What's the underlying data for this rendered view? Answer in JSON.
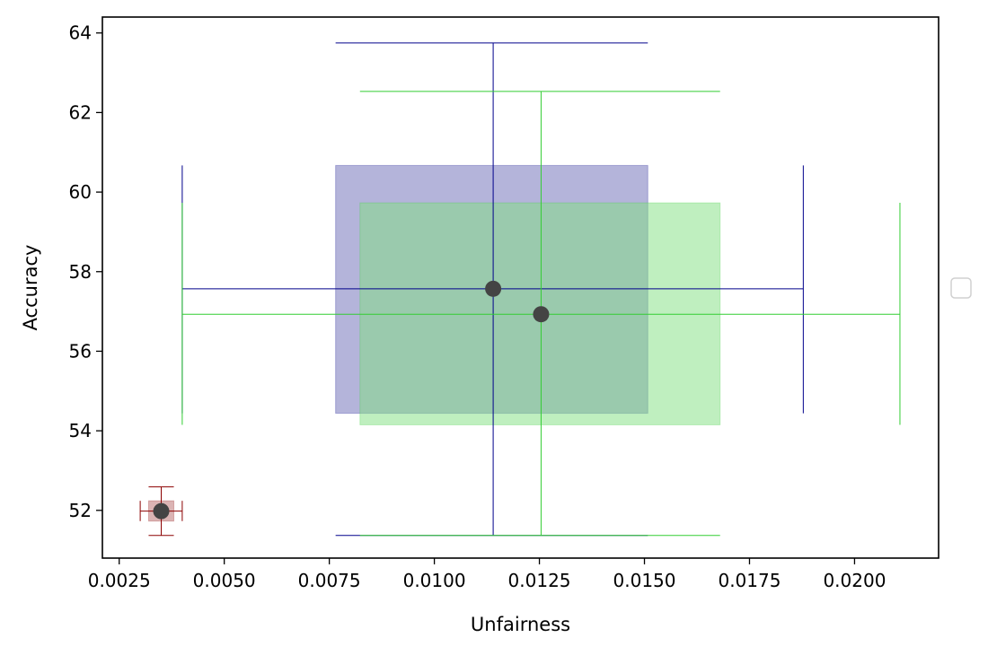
{
  "chart_data": {
    "type": "scatter",
    "title": "",
    "xlabel": "Unfairness",
    "ylabel": "Accuracy",
    "xlim": [
      0.0021,
      0.022
    ],
    "ylim": [
      50.8,
      64.4
    ],
    "xticks": [
      0.0025,
      0.005,
      0.0075,
      0.01,
      0.0125,
      0.015,
      0.0175,
      0.02
    ],
    "xtick_labels": [
      "0.0025",
      "0.0050",
      "0.0075",
      "0.0100",
      "0.0125",
      "0.0150",
      "0.0175",
      "0.0200"
    ],
    "yticks": [
      52,
      54,
      56,
      58,
      60,
      62,
      64
    ],
    "ytick_labels": [
      "52",
      "54",
      "56",
      "58",
      "60",
      "62",
      "64"
    ],
    "grid": false,
    "legend": {
      "placement": "right",
      "entries": []
    },
    "marker_color": "#444444",
    "series": [
      {
        "color": "#00008b",
        "box_color": "#6a6ab5",
        "point": {
          "x": 0.0114,
          "y": 57.57
        },
        "box": {
          "x": [
            0.00765,
            0.01508
          ],
          "y": [
            54.44,
            60.67
          ]
        },
        "xerr": [
          0.004,
          0.01878
        ],
        "yerr": [
          51.37,
          63.75
        ],
        "xerr_cap_span": [
          54.44,
          60.67
        ],
        "yerr_cap_span": [
          0.00765,
          0.01508
        ]
      },
      {
        "color": "#32cd32",
        "box_color": "#7fe07f",
        "point": {
          "x": 0.01254,
          "y": 56.93
        },
        "box": {
          "x": [
            0.00823,
            0.0168
          ],
          "y": [
            54.15,
            59.73
          ]
        },
        "xerr": [
          0.004,
          0.02108
        ],
        "yerr": [
          51.37,
          62.53
        ],
        "xerr_cap_span": [
          54.15,
          59.73
        ],
        "yerr_cap_span": [
          0.00823,
          0.0168
        ]
      },
      {
        "color": "#8b0000",
        "box_color": "#b86a6a",
        "point": {
          "x": 0.0035,
          "y": 51.98
        },
        "box": {
          "x": [
            0.0032,
            0.0038
          ],
          "y": [
            51.73,
            52.24
          ]
        },
        "xerr": [
          0.003,
          0.004
        ],
        "yerr": [
          51.37,
          52.59
        ],
        "xerr_cap_span": [
          51.73,
          52.24
        ],
        "yerr_cap_span": [
          0.0032,
          0.0038
        ]
      }
    ]
  }
}
